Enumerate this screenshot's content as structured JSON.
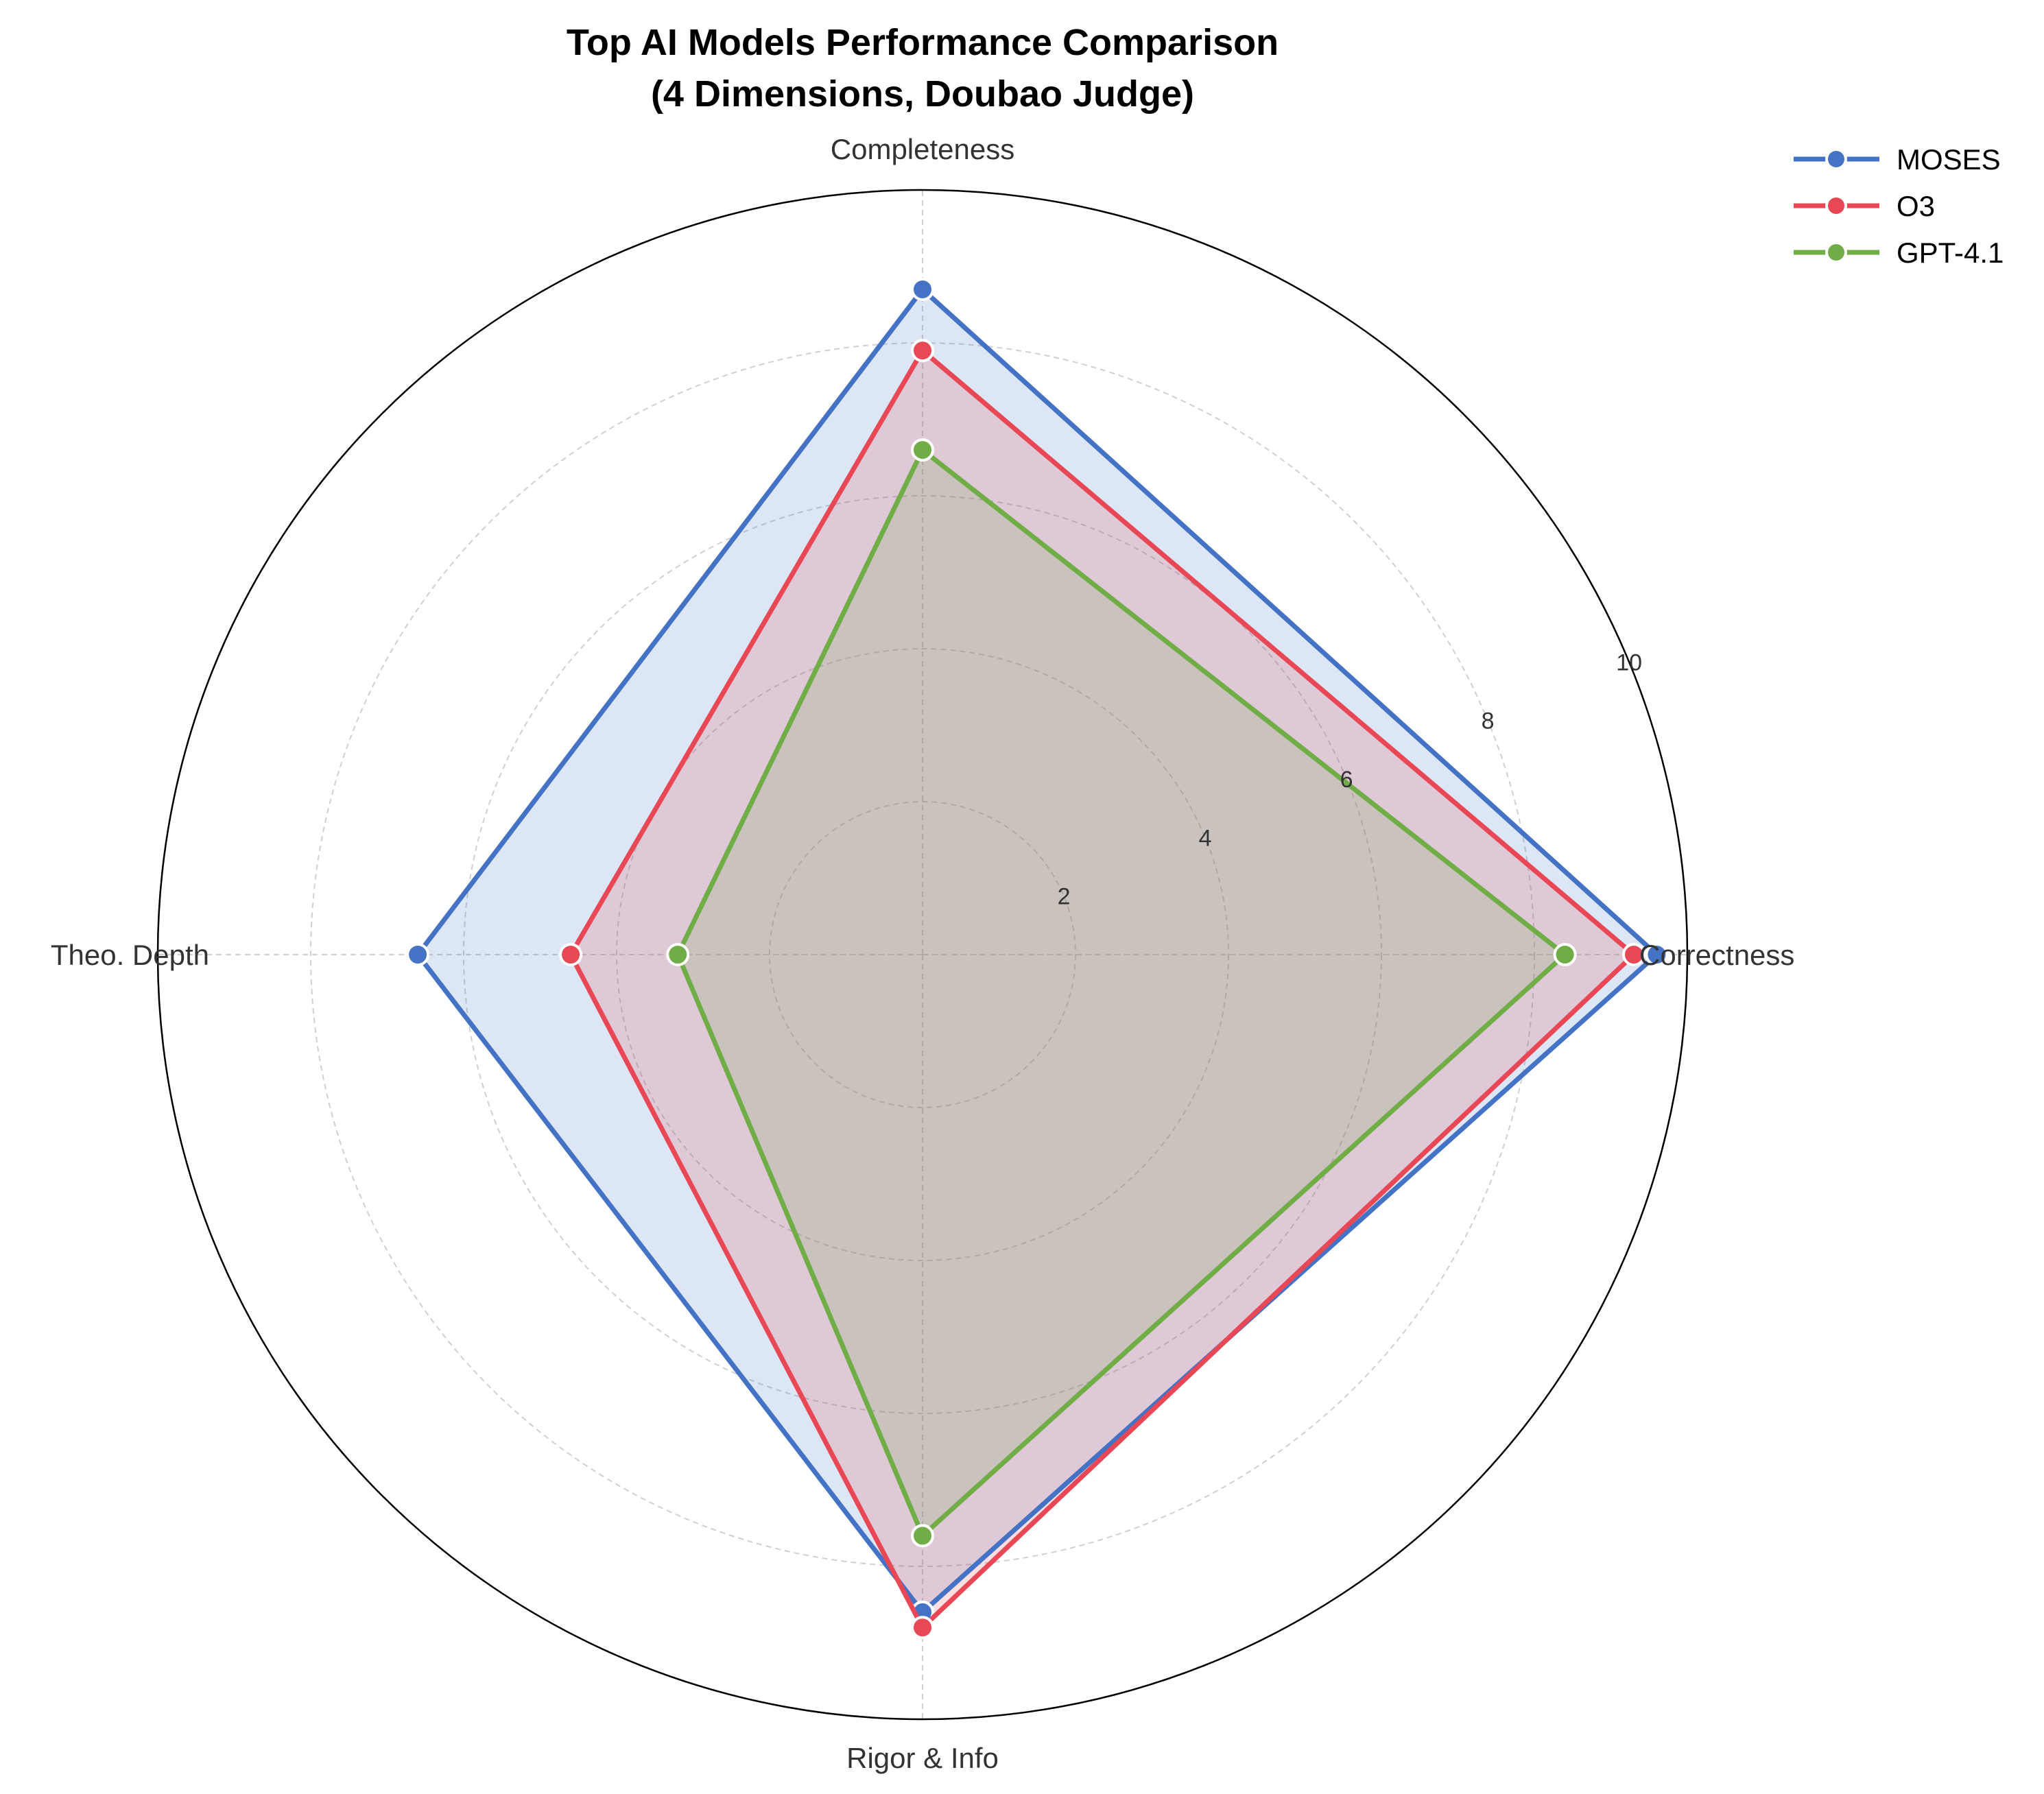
{
  "chart_data": {
    "type": "radar",
    "title": [
      "Top AI Models Performance Comparison",
      "(4 Dimensions, Doubao Judge)"
    ],
    "axes": [
      "Correctness",
      "Completeness",
      "Theo. Depth",
      "Rigor & Info"
    ],
    "rlim": [
      0,
      10
    ],
    "rticks": [
      2,
      4,
      6,
      8,
      10
    ],
    "grid": true,
    "legend": "top-right",
    "series": [
      {
        "name": "MOSES",
        "color": "#4472C4",
        "values": [
          9.6,
          8.7,
          6.6,
          8.6
        ]
      },
      {
        "name": "O3",
        "color": "#E84855",
        "values": [
          9.3,
          7.9,
          4.6,
          8.8
        ]
      },
      {
        "name": "GPT-4.1",
        "color": "#70AD47",
        "values": [
          8.4,
          6.6,
          3.2,
          7.6
        ]
      }
    ]
  }
}
